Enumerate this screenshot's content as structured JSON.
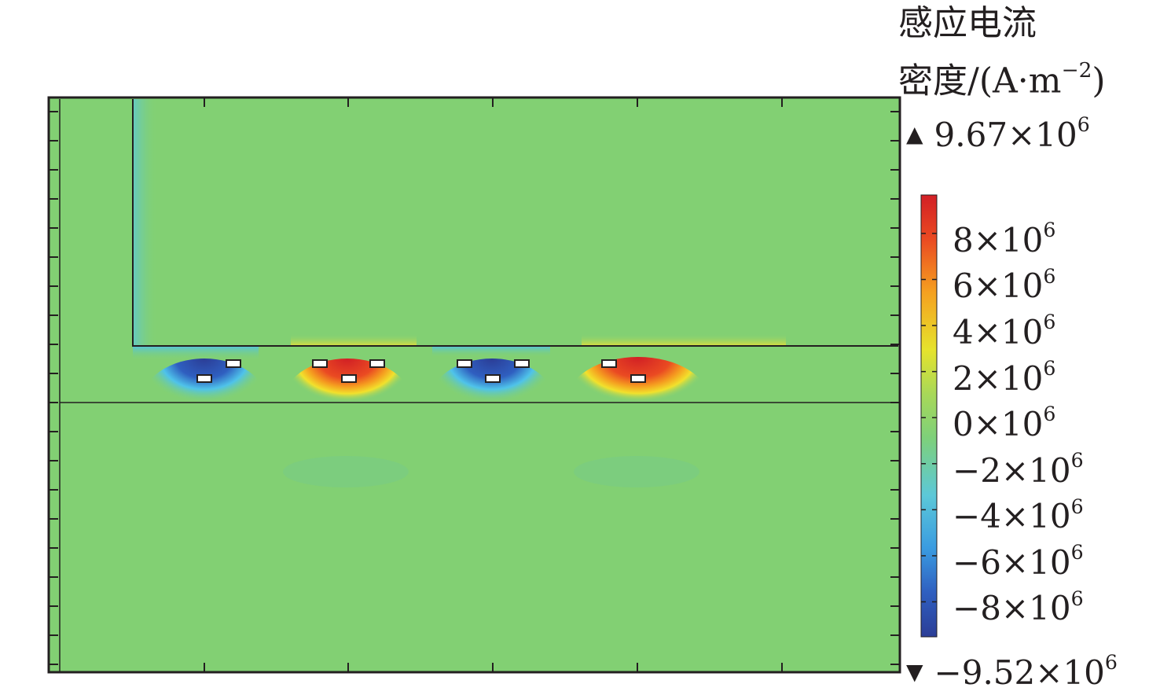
{
  "chart_data": {
    "type": "heatmap",
    "title_line1": "感应电流",
    "title_line2": "密度/(A·m",
    "title_sup": "−2",
    "title_close": ")",
    "max_label": {
      "text": "9.67×10",
      "sup": "6"
    },
    "min_label": {
      "text": "−9.52×10",
      "sup": "6"
    },
    "colorbar": {
      "vmin": -9520000.0,
      "vmax": 9670000.0,
      "ticks": [
        {
          "value": 8000000.0,
          "text": "8×10",
          "sup": "6"
        },
        {
          "value": 6000000.0,
          "text": "6×10",
          "sup": "6"
        },
        {
          "value": 4000000.0,
          "text": "4×10",
          "sup": "6"
        },
        {
          "value": 2000000.0,
          "text": "2×10",
          "sup": "6"
        },
        {
          "value": 0,
          "text": "0×10",
          "sup": "6"
        },
        {
          "value": -2000000.0,
          "text": "−2×10",
          "sup": "6"
        },
        {
          "value": -4000000.0,
          "text": "−4×10",
          "sup": "6"
        },
        {
          "value": -6000000.0,
          "text": "−6×10",
          "sup": "6"
        },
        {
          "value": -8000000.0,
          "text": "−8×10",
          "sup": "6"
        }
      ],
      "colors": [
        "#2b3d96",
        "#2f6fd0",
        "#4fc3ea",
        "#7ed07a",
        "#c9e040",
        "#f2e12c",
        "#f59a1e",
        "#e83324",
        "#d11f25"
      ]
    },
    "field_blobs": [
      {
        "value": -9520000.0
      },
      {
        "value": 9670000.0
      },
      {
        "value": -9400000.0
      },
      {
        "value": 9600000.0
      }
    ],
    "background_value": 0,
    "grid": false
  }
}
